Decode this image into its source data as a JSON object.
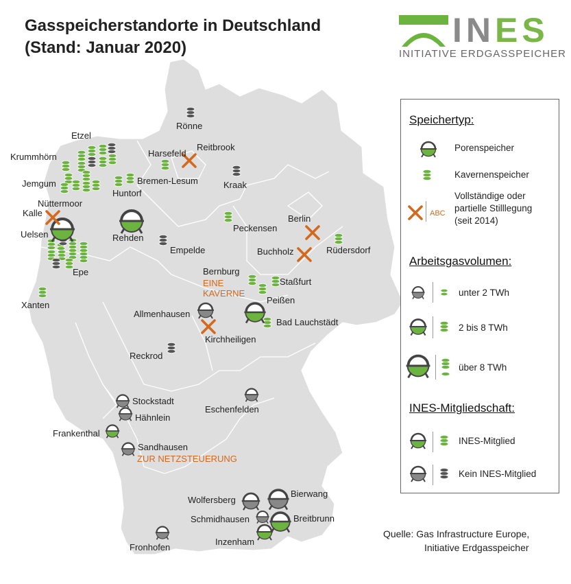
{
  "title": {
    "line1": "Gasspeicherstandorte in Deutschland",
    "line2": "(Stand: Januar 2020)"
  },
  "logo": {
    "name_part1": "IN",
    "name_part2": "ES",
    "subtitle": "INITIATIVE ERDGASSPEICHER"
  },
  "colors": {
    "member_green": "#6cb33f",
    "non_member_grey": "#555555",
    "decommissioned_orange": "#d2691e",
    "land": "#dedede"
  },
  "places": {
    "etzel": "Etzel",
    "krummhoern": "Krummhörn",
    "jemgum": "Jemgum",
    "nuettermoor": "Nüttermoor",
    "huntorf": "Huntorf",
    "bremen_lesum": "Bremen-Lesum",
    "harsefeld": "Harsefeld",
    "reitbrook": "Reitbrook",
    "roenne": "Rönne",
    "kraak": "Kraak",
    "kalle": "Kalle",
    "uelsen": "Uelsen",
    "rehden": "Rehden",
    "empelde": "Empelde",
    "peckensen": "Peckensen",
    "berlin": "Berlin",
    "ruedersdorf": "Rüdersdorf",
    "buchholz": "Buchholz",
    "epe": "Epe",
    "xanten": "Xanten",
    "bernburg": "Bernburg",
    "eine_kaverne": "EINE\nKAVERNE",
    "stassfurt": "Staßfurt",
    "peissen": "Peißen",
    "allmenhausen": "Allmenhausen",
    "bad_lauchstaedt": "Bad Lauchstädt",
    "kirchheiligen": "Kirchheiligen",
    "reckrod": "Reckrod",
    "stockstadt": "Stockstadt",
    "haehnlein": "Hähnlein",
    "eschenfelden": "Eschenfelden",
    "frankenthal": "Frankenthal",
    "sandhausen": "Sandhausen",
    "zur_netzsteuerung": "ZUR NETZSTEUERUNG",
    "wolfersberg": "Wolfersberg",
    "bierwang": "Bierwang",
    "schmidhausen": "Schmidhausen",
    "breitbrunn": "Breitbrunn",
    "inzenham": "Inzenham",
    "fronhofen": "Fronhofen"
  },
  "legend": {
    "speichertyp_heading": "Speichertyp:",
    "porenspeicher": "Porenspeicher",
    "kavernenspeicher": "Kavernenspeicher",
    "stilllegung_abc": "ABC",
    "stilllegung_line1": "Vollständige oder",
    "stilllegung_line2": "partielle Stilllegung",
    "stilllegung_line3": "(seit 2014)",
    "arbeitsgas_heading": "Arbeitsgasvolumen:",
    "unter_2": "unter 2 TWh",
    "zwei_bis_acht": "2 bis 8 TWh",
    "ueber_8": "über 8 TWh",
    "mitglied_heading": "INES-Mitgliedschaft:",
    "ines_mitglied": "INES-Mitglied",
    "kein_mitglied": "Kein INES-Mitglied"
  },
  "source": {
    "line1": "Quelle: Gas Infrastructure Europe,",
    "line2": "Initiative Erdgasspeicher"
  }
}
